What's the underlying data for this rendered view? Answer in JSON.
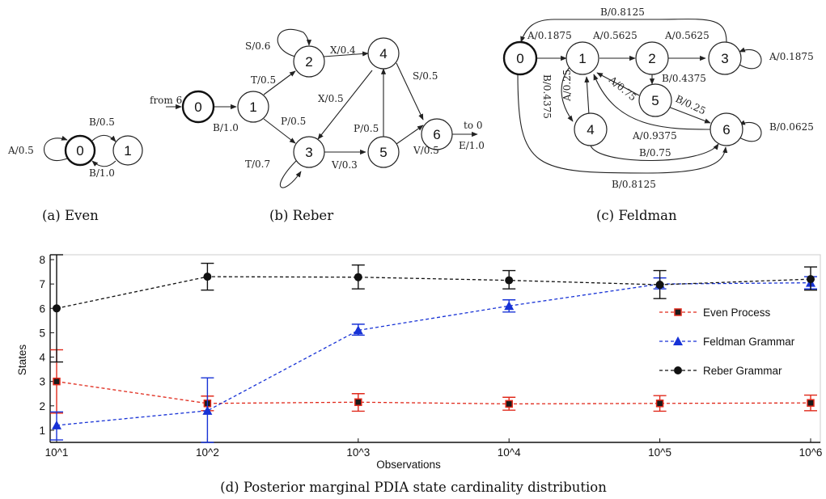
{
  "figures": {
    "even": {
      "caption": "(a)  Even",
      "states": [
        "0",
        "1"
      ],
      "edges": [
        "A/0.5",
        "B/0.5",
        "B/1.0"
      ]
    },
    "reber": {
      "caption": "(b)  Reber",
      "states": [
        "0",
        "1",
        "2",
        "3",
        "4",
        "5",
        "6"
      ],
      "edges": [
        "from 6",
        "B/1.0",
        "T/0.5",
        "P/0.5",
        "S/0.6",
        "X/0.4",
        "X/0.5",
        "T/0.7",
        "V/0.3",
        "P/0.5",
        "S/0.5",
        "V/0.5",
        "to 0",
        "E/1.0"
      ]
    },
    "feldman": {
      "caption": "(c)  Feldman",
      "states": [
        "0",
        "1",
        "2",
        "3",
        "4",
        "5",
        "6"
      ],
      "edges": [
        "B/0.8125",
        "A/0.1875",
        "A/0.5625",
        "A/0.5625",
        "A/0.1875",
        "B/0.4375",
        "A/0.25",
        "A/0.75",
        "B/0.25",
        "A/0.9375",
        "B/0.0625",
        "B/0.75",
        "B/0.8125",
        "B/0.4375"
      ]
    }
  },
  "chart_caption": "(d)  Posterior marginal PDIA state cardinality distribution",
  "chart_data": {
    "type": "line",
    "xlabel": "Observations",
    "ylabel": "States",
    "categories": [
      "10^1",
      "10^2",
      "10^3",
      "10^4",
      "10^5",
      "10^6"
    ],
    "ylim": [
      0.5,
      8.2
    ],
    "yticks": [
      "1",
      "2",
      "3",
      "4",
      "5",
      "6",
      "7",
      "8"
    ],
    "grid": false,
    "legend_position": "right",
    "series": [
      {
        "name": "Even Process",
        "color": "#e0291b",
        "marker": "square",
        "values": [
          3.0,
          2.1,
          2.15,
          2.08,
          2.1,
          2.12
        ],
        "err_low": [
          1.7,
          1.8,
          1.78,
          1.82,
          1.78,
          1.8
        ],
        "err_high": [
          4.3,
          2.4,
          2.5,
          2.35,
          2.42,
          2.44
        ]
      },
      {
        "name": "Feldman Grammar",
        "color": "#1732d6",
        "marker": "triangle",
        "values": [
          1.2,
          1.8,
          5.1,
          6.1,
          7.0,
          7.05
        ],
        "err_low": [
          0.6,
          0.5,
          4.9,
          5.85,
          6.8,
          6.8
        ],
        "err_high": [
          1.75,
          3.15,
          5.35,
          6.35,
          7.25,
          7.3
        ]
      },
      {
        "name": "Reber Grammar",
        "color": "#111111",
        "marker": "circle",
        "values": [
          6.0,
          7.3,
          7.28,
          7.15,
          6.97,
          7.2
        ],
        "err_low": [
          3.8,
          6.75,
          6.8,
          6.8,
          6.4,
          6.75
        ],
        "err_high": [
          8.2,
          7.85,
          7.78,
          7.55,
          7.55,
          7.7
        ]
      }
    ]
  }
}
